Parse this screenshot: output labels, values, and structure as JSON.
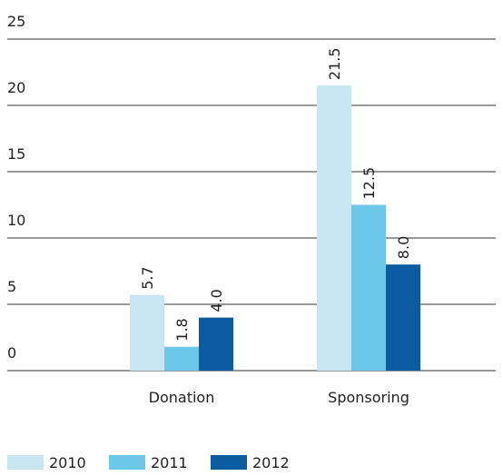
{
  "chart_data": {
    "type": "bar",
    "categories": [
      "Donation",
      "Sponsoring"
    ],
    "series": [
      {
        "name": "2010",
        "color": "#c6e7f1",
        "values": [
          5.7,
          21.5
        ],
        "value_labels": [
          "5.7",
          "21.5"
        ]
      },
      {
        "name": "2011",
        "color": "#6dc7e9",
        "values": [
          1.8,
          12.5
        ],
        "value_labels": [
          "1.8",
          "12.5"
        ]
      },
      {
        "name": "2012",
        "color": "#0b5ba1",
        "values": [
          4.0,
          8.0
        ],
        "value_labels": [
          "4.0",
          "8.0"
        ]
      }
    ],
    "ylim": [
      0,
      25
    ],
    "yticks": [
      0,
      5,
      10,
      15,
      20,
      25
    ],
    "grid": true,
    "legend": "bottom"
  }
}
